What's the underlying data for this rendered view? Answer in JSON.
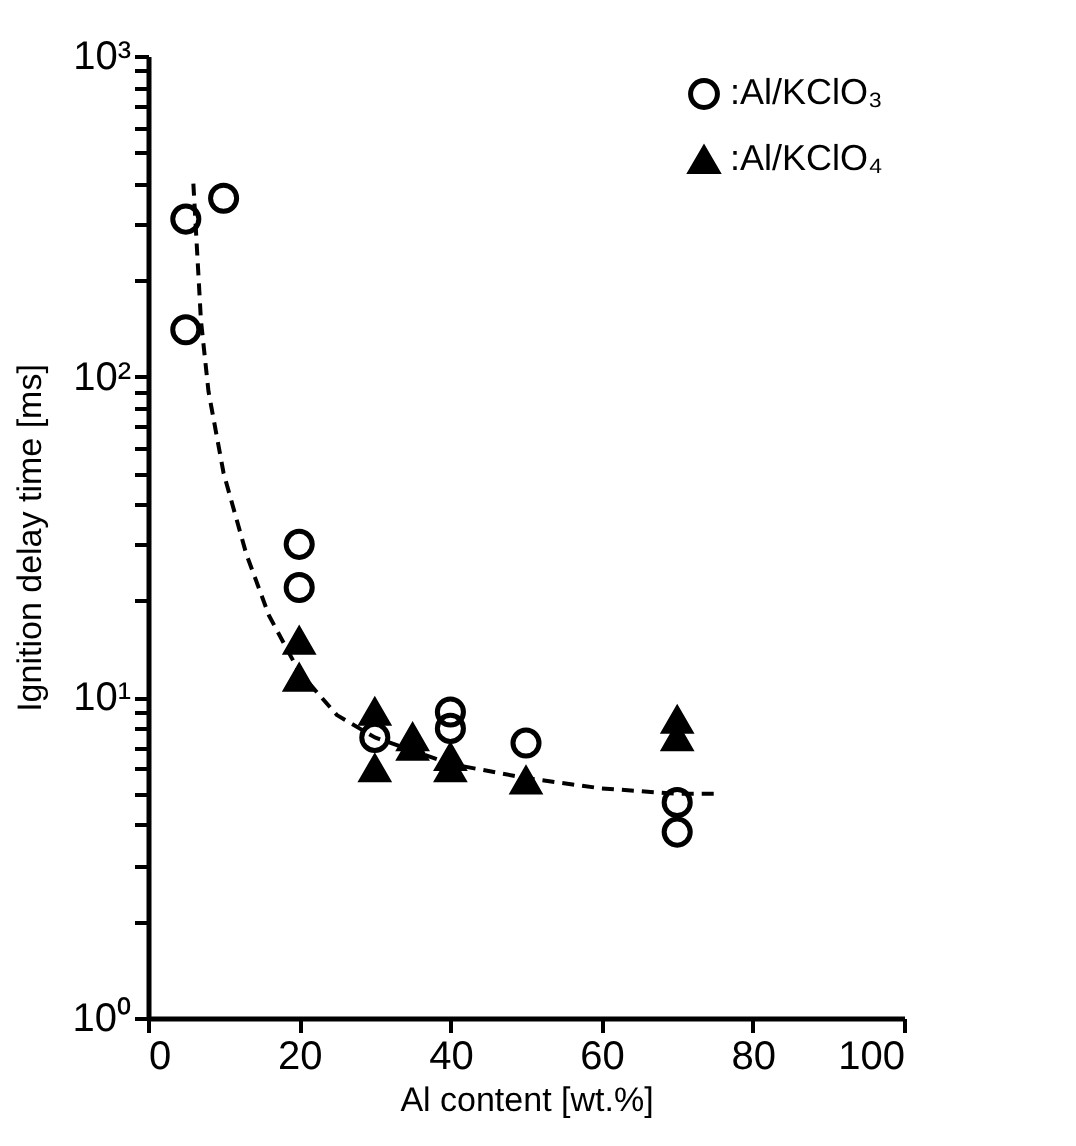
{
  "chart_data": {
    "type": "scatter",
    "xlabel": "Al content [wt.%]",
    "ylabel": "Ignition delay time [ms]",
    "xlim": [
      0,
      100
    ],
    "xticks": [
      0,
      20,
      40,
      60,
      80,
      100
    ],
    "ylim": [
      1,
      1000
    ],
    "log": "y",
    "yticks": [
      {
        "value": 1,
        "label": "10⁰"
      },
      {
        "value": 2,
        "label": null
      },
      {
        "value": 3,
        "label": null
      },
      {
        "value": 4,
        "label": null
      },
      {
        "value": 5,
        "label": null
      },
      {
        "value": 6,
        "label": null
      },
      {
        "value": 7,
        "label": null
      },
      {
        "value": 8,
        "label": null
      },
      {
        "value": 9,
        "label": null
      },
      {
        "value": 10,
        "label": "10¹"
      },
      {
        "value": 20,
        "label": null
      },
      {
        "value": 30,
        "label": null
      },
      {
        "value": 40,
        "label": null
      },
      {
        "value": 50,
        "label": null
      },
      {
        "value": 60,
        "label": null
      },
      {
        "value": 70,
        "label": null
      },
      {
        "value": 80,
        "label": null
      },
      {
        "value": 90,
        "label": null
      },
      {
        "value": 100,
        "label": "10²"
      },
      {
        "value": 200,
        "label": null
      },
      {
        "value": 300,
        "label": null
      },
      {
        "value": 400,
        "label": null
      },
      {
        "value": 500,
        "label": null
      },
      {
        "value": 600,
        "label": null
      },
      {
        "value": 700,
        "label": null
      },
      {
        "value": 800,
        "label": null
      },
      {
        "value": 900,
        "label": null
      },
      {
        "value": 1000,
        "label": "10³"
      }
    ],
    "grid": false,
    "legend": "top right",
    "series": [
      {
        "type": "line",
        "color": "#000000",
        "line_style": "dashed",
        "marker": "none",
        "x": [
          6,
          7,
          8,
          10,
          13,
          16,
          20,
          25,
          30,
          40,
          50,
          60,
          70,
          75
        ],
        "values": [
          400,
          150,
          90,
          50,
          28,
          18,
          12,
          8.8,
          7.5,
          6.2,
          5.6,
          5.2,
          5.0,
          5.0
        ]
      },
      {
        "name": ":Al/KClO₃",
        "marker": "circle",
        "color": "#000000",
        "x": [
          5,
          5,
          10,
          20,
          20,
          30,
          40,
          40,
          50,
          70,
          70
        ],
        "values": [
          310,
          140,
          360,
          30,
          22,
          7.5,
          9,
          8,
          7.2,
          4.7,
          3.8
        ]
      },
      {
        "name": ":Al/KClO₄",
        "marker": "triangle",
        "color": "#000000",
        "x": [
          20,
          20,
          30,
          30,
          35,
          35,
          40,
          40,
          50,
          70,
          70
        ],
        "values": [
          15,
          11.5,
          9,
          6,
          7.5,
          7,
          6.5,
          6,
          5.5,
          8.5,
          7.5
        ]
      }
    ]
  }
}
